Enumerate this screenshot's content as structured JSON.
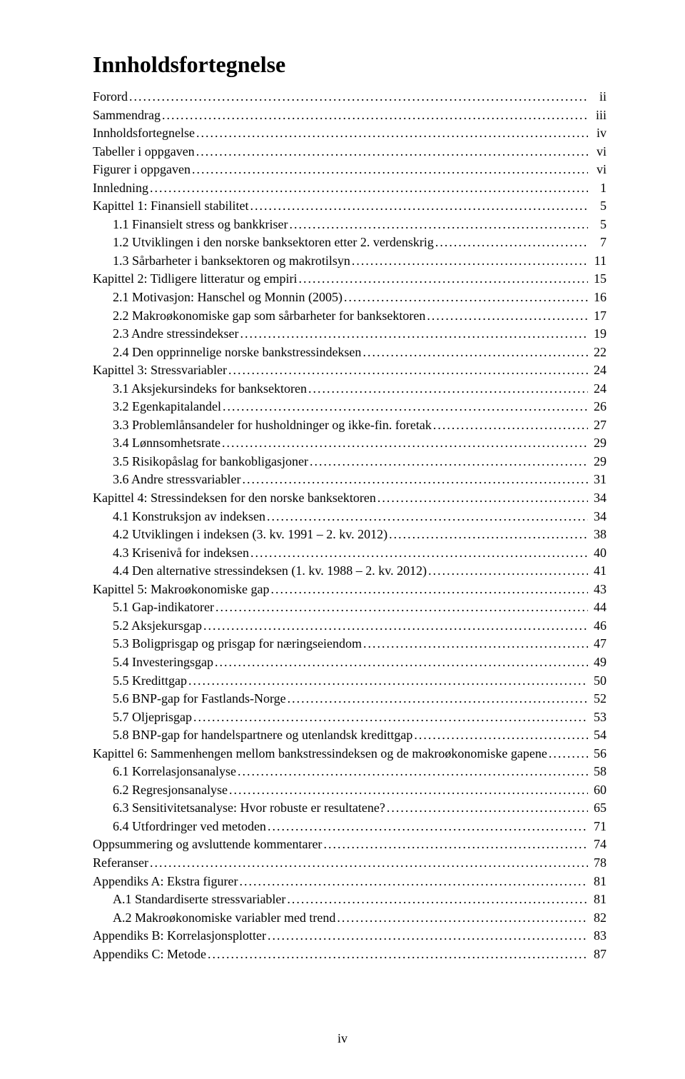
{
  "title": "Innholdsfortegnelse",
  "page_number_footer": "iv",
  "toc": [
    {
      "label": "Forord",
      "page": "ii",
      "indent": 0
    },
    {
      "label": "Sammendrag",
      "page": "iii",
      "indent": 0
    },
    {
      "label": "Innholdsfortegnelse",
      "page": "iv",
      "indent": 0
    },
    {
      "label": "Tabeller i oppgaven",
      "page": "vi",
      "indent": 0
    },
    {
      "label": "Figurer i oppgaven",
      "page": "vi",
      "indent": 0
    },
    {
      "label": "Innledning",
      "page": "1",
      "indent": 0
    },
    {
      "label": "Kapittel 1: Finansiell stabilitet",
      "page": "5",
      "indent": 0
    },
    {
      "label": "1.1 Finansielt stress og bankkriser",
      "page": "5",
      "indent": 1
    },
    {
      "label": "1.2 Utviklingen i den norske banksektoren etter 2. verdenskrig",
      "page": "7",
      "indent": 1
    },
    {
      "label": "1.3 Sårbarheter i banksektoren og makrotilsyn",
      "page": "11",
      "indent": 1
    },
    {
      "label": "Kapittel 2: Tidligere litteratur og empiri",
      "page": "15",
      "indent": 0
    },
    {
      "label": "2.1 Motivasjon: Hanschel og Monnin (2005)",
      "page": "16",
      "indent": 1
    },
    {
      "label": "2.2 Makroøkonomiske gap som sårbarheter for banksektoren",
      "page": "17",
      "indent": 1
    },
    {
      "label": "2.3 Andre stressindekser",
      "page": "19",
      "indent": 1
    },
    {
      "label": "2.4 Den opprinnelige norske bankstressindeksen",
      "page": "22",
      "indent": 1
    },
    {
      "label": "Kapittel 3: Stressvariabler",
      "page": "24",
      "indent": 0
    },
    {
      "label": "3.1 Aksjekursindeks for banksektoren",
      "page": "24",
      "indent": 1
    },
    {
      "label": "3.2 Egenkapitalandel",
      "page": "26",
      "indent": 1
    },
    {
      "label": "3.3 Problemlånsandeler for husholdninger og ikke-fin. foretak",
      "page": "27",
      "indent": 1
    },
    {
      "label": "3.4 Lønnsomhetsrate",
      "page": "29",
      "indent": 1
    },
    {
      "label": "3.5 Risikopåslag for bankobligasjoner",
      "page": "29",
      "indent": 1
    },
    {
      "label": "3.6 Andre stressvariabler",
      "page": "31",
      "indent": 1
    },
    {
      "label": "Kapittel 4: Stressindeksen for den norske banksektoren",
      "page": "34",
      "indent": 0
    },
    {
      "label": "4.1 Konstruksjon av indeksen",
      "page": "34",
      "indent": 1
    },
    {
      "label": "4.2 Utviklingen i indeksen (3. kv. 1991 – 2. kv. 2012)",
      "page": "38",
      "indent": 1
    },
    {
      "label": "4.3 Krisenivå for indeksen",
      "page": "40",
      "indent": 1
    },
    {
      "label": "4.4 Den alternative stressindeksen (1. kv. 1988 – 2. kv. 2012)",
      "page": "41",
      "indent": 1
    },
    {
      "label": "Kapittel 5: Makroøkonomiske gap",
      "page": "43",
      "indent": 0
    },
    {
      "label": "5.1 Gap-indikatorer",
      "page": "44",
      "indent": 1
    },
    {
      "label": "5.2 Aksjekursgap",
      "page": "46",
      "indent": 1
    },
    {
      "label": "5.3 Boligprisgap og prisgap for næringseiendom",
      "page": "47",
      "indent": 1
    },
    {
      "label": "5.4 Investeringsgap",
      "page": "49",
      "indent": 1
    },
    {
      "label": "5.5 Kredittgap",
      "page": "50",
      "indent": 1
    },
    {
      "label": "5.6 BNP-gap for Fastlands-Norge",
      "page": "52",
      "indent": 1
    },
    {
      "label": "5.7 Oljeprisgap",
      "page": "53",
      "indent": 1
    },
    {
      "label": "5.8 BNP-gap for handelspartnere og utenlandsk kredittgap",
      "page": "54",
      "indent": 1
    },
    {
      "label": "Kapittel 6: Sammenhengen mellom bankstressindeksen og de makroøkonomiske gapene",
      "page": "56",
      "indent": 0
    },
    {
      "label": "6.1 Korrelasjonsanalyse",
      "page": "58",
      "indent": 1
    },
    {
      "label": "6.2 Regresjonsanalyse",
      "page": "60",
      "indent": 1
    },
    {
      "label": "6.3 Sensitivitetsanalyse: Hvor robuste er resultatene?",
      "page": "65",
      "indent": 1
    },
    {
      "label": "6.4 Utfordringer ved metoden",
      "page": "71",
      "indent": 1
    },
    {
      "label": "Oppsummering og avsluttende kommentarer",
      "page": "74",
      "indent": 0
    },
    {
      "label": "Referanser",
      "page": "78",
      "indent": 0
    },
    {
      "label": "Appendiks A: Ekstra figurer",
      "page": "81",
      "indent": 0
    },
    {
      "label": "A.1 Standardiserte stressvariabler",
      "page": "81",
      "indent": 1
    },
    {
      "label": "A.2 Makroøkonomiske variabler med trend",
      "page": "82",
      "indent": 1
    },
    {
      "label": "Appendiks B: Korrelasjonsplotter",
      "page": "83",
      "indent": 0
    },
    {
      "label": "Appendiks C: Metode",
      "page": "87",
      "indent": 0
    }
  ]
}
